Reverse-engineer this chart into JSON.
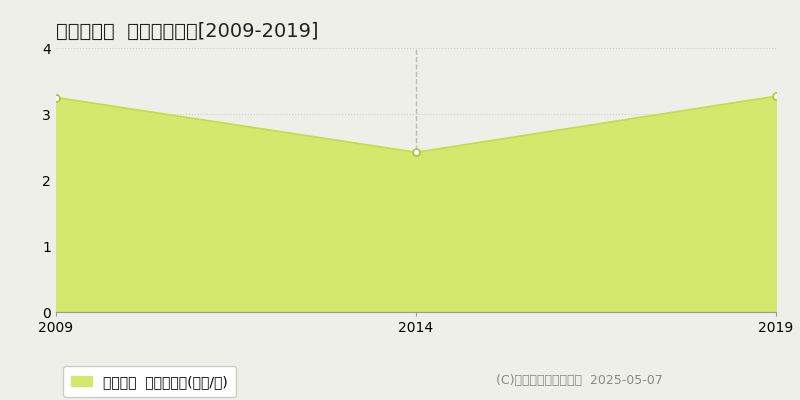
{
  "title": "富山市楡原  住宅価格推移[2009-2019]",
  "years": [
    2009,
    2014,
    2019
  ],
  "values": [
    3.25,
    2.42,
    3.27
  ],
  "xlim": [
    2009,
    2019
  ],
  "ylim": [
    0,
    4
  ],
  "yticks": [
    0,
    1,
    2,
    3,
    4
  ],
  "xticks": [
    2009,
    2014,
    2019
  ],
  "line_color": "#c8d94a",
  "fill_color": "#d4e86e",
  "fill_alpha": 1.0,
  "marker_color": "white",
  "marker_edgecolor": "#b0c040",
  "vline_x": 2014,
  "vline_color": "#bbbbbb",
  "vline_style": "--",
  "grid_color": "#cccccc",
  "grid_style": ":",
  "background_color": "#efefea",
  "plot_background": "#efefea",
  "legend_label": "住宅価格  平均坪単価(万円/坪)",
  "copyright_text": "(C)土地価格ドットコム  2025-05-07",
  "title_fontsize": 14,
  "tick_fontsize": 10,
  "legend_fontsize": 10,
  "copyright_fontsize": 9,
  "spine_color": "#999999"
}
